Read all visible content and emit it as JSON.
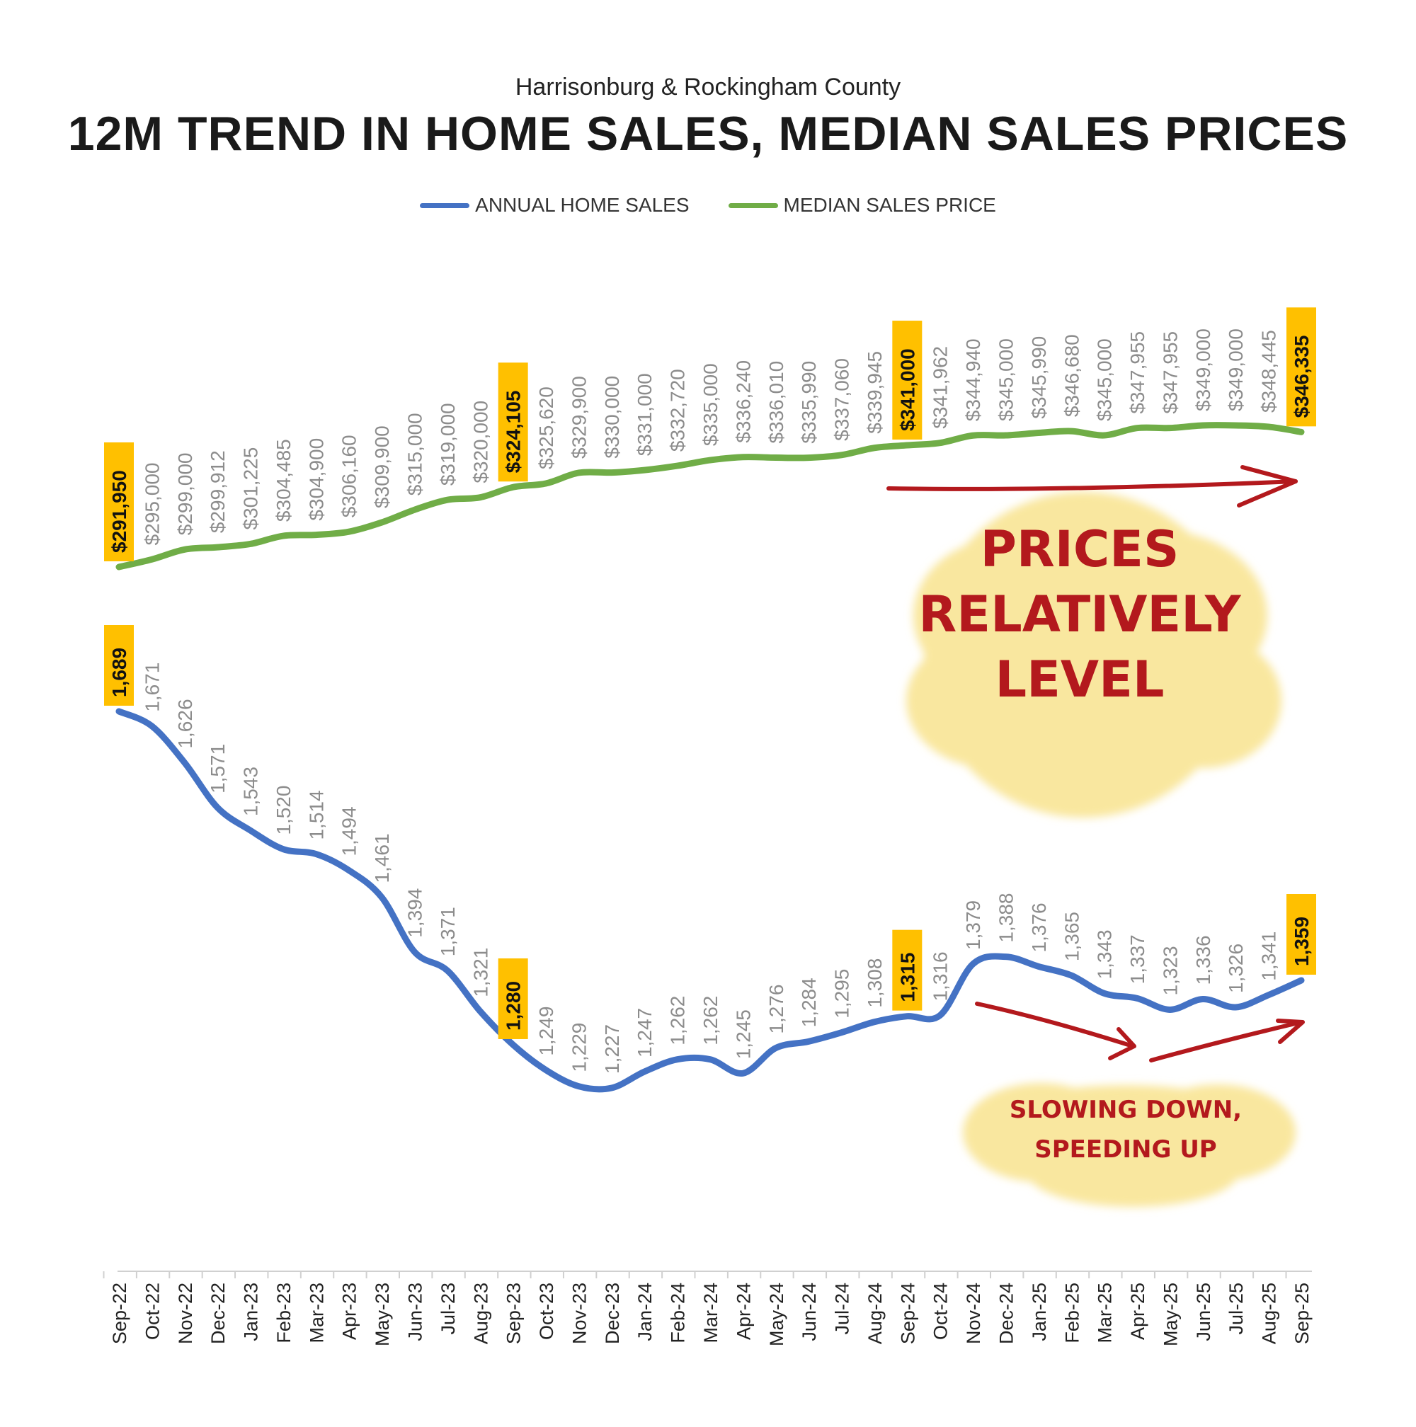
{
  "header": {
    "subtitle": "Harrisonburg & Rockingham County",
    "title": "12M TREND IN HOME SALES, MEDIAN SALES PRICES"
  },
  "legend": [
    {
      "label": "ANNUAL HOME SALES",
      "color": "#4472C4"
    },
    {
      "label": "MEDIAN SALES PRICE",
      "color": "#70AD47"
    }
  ],
  "annotations": {
    "prices_note": [
      "PRICES",
      "RELATIVELY",
      "LEVEL"
    ],
    "sales_note": [
      "SLOWING DOWN,",
      "SPEEDING UP"
    ],
    "ink_color": "#b3191d",
    "highlight_color": "#f9e79f",
    "label_highlight_color": "#FFC000"
  },
  "chart_data": {
    "type": "line",
    "title": "12M TREND IN HOME SALES, MEDIAN SALES PRICES",
    "subtitle": "Harrisonburg & Rockingham County",
    "categories": [
      "Sep-22",
      "Oct-22",
      "Nov-22",
      "Dec-22",
      "Jan-23",
      "Feb-23",
      "Mar-23",
      "Apr-23",
      "May-23",
      "Jun-23",
      "Jul-23",
      "Aug-23",
      "Sep-23",
      "Oct-23",
      "Nov-23",
      "Dec-23",
      "Jan-24",
      "Feb-24",
      "Mar-24",
      "Apr-24",
      "May-24",
      "Jun-24",
      "Jul-24",
      "Aug-24",
      "Sep-24",
      "Oct-24",
      "Nov-24",
      "Dec-24",
      "Jan-25",
      "Feb-25",
      "Mar-25",
      "Apr-25",
      "May-25",
      "Jun-25",
      "Jul-25",
      "Aug-25",
      "Sep-25"
    ],
    "series": [
      {
        "name": "MEDIAN SALES PRICE",
        "color": "#70AD47",
        "values": [
          291950,
          295000,
          299000,
          299912,
          301225,
          304485,
          304900,
          306160,
          309900,
          315000,
          319000,
          320000,
          324105,
          325620,
          329900,
          330000,
          331000,
          332720,
          335000,
          336240,
          336010,
          335990,
          337060,
          339945,
          341000,
          341962,
          344940,
          345000,
          345990,
          346680,
          345000,
          347955,
          347955,
          349000,
          349000,
          348445,
          346335
        ],
        "labels": [
          "$291,950",
          "$295,000",
          "$299,000",
          "$299,912",
          "$301,225",
          "$304,485",
          "$304,900",
          "$306,160",
          "$309,900",
          "$315,000",
          "$319,000",
          "$320,000",
          "$324,105",
          "$325,620",
          "$329,900",
          "$330,000",
          "$331,000",
          "$332,720",
          "$335,000",
          "$336,240",
          "$336,010",
          "$335,990",
          "$337,060",
          "$339,945",
          "$341,000",
          "$341,962",
          "$344,940",
          "$345,000",
          "$345,990",
          "$346,680",
          "$345,000",
          "$347,955",
          "$347,955",
          "$349,000",
          "$349,000",
          "$348,445",
          "$346,335"
        ],
        "highlighted": [
          0,
          12,
          24,
          36
        ]
      },
      {
        "name": "ANNUAL HOME SALES",
        "color": "#4472C4",
        "values": [
          1689,
          1671,
          1626,
          1571,
          1543,
          1520,
          1514,
          1494,
          1461,
          1394,
          1371,
          1321,
          1280,
          1249,
          1229,
          1227,
          1247,
          1262,
          1262,
          1245,
          1276,
          1284,
          1295,
          1308,
          1315,
          1316,
          1379,
          1388,
          1376,
          1365,
          1343,
          1337,
          1323,
          1336,
          1326,
          1341,
          1359
        ],
        "labels": [
          "1,689",
          "1,671",
          "1,626",
          "1,571",
          "1,543",
          "1,520",
          "1,514",
          "1,494",
          "1,461",
          "1,394",
          "1,371",
          "1,321",
          "1,280",
          "1,249",
          "1,229",
          "1,227",
          "1,247",
          "1,262",
          "1,262",
          "1,245",
          "1,276",
          "1,284",
          "1,295",
          "1,308",
          "1,315",
          "1,316",
          "1,379",
          "1,388",
          "1,376",
          "1,365",
          "1,343",
          "1,337",
          "1,323",
          "1,336",
          "1,326",
          "1,341",
          "1,359"
        ],
        "highlighted": [
          0,
          12,
          24,
          36
        ]
      }
    ],
    "axes": {
      "y_visible": false,
      "grid": false
    },
    "legend_position": "top-center"
  }
}
